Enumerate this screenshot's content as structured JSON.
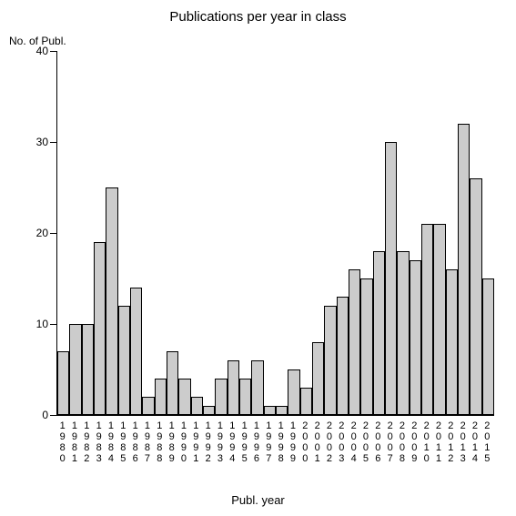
{
  "chart": {
    "type": "bar",
    "title": "Publications per year in class",
    "title_fontsize": 15,
    "ylabel": "No. of Publ.",
    "xlabel": "Publ. year",
    "label_fontsize": 12,
    "background_color": "#ffffff",
    "axis_color": "#000000",
    "bar_fill": "#cccccc",
    "bar_border": "#000000",
    "ylim": [
      0,
      40
    ],
    "yticks": [
      0,
      10,
      20,
      30,
      40
    ],
    "bar_width_ratio": 1.0,
    "categories": [
      "1980",
      "1981",
      "1982",
      "1983",
      "1984",
      "1985",
      "1986",
      "1987",
      "1988",
      "1989",
      "1990",
      "1991",
      "1992",
      "1993",
      "1994",
      "1995",
      "1996",
      "1997",
      "1998",
      "1999",
      "2000",
      "2001",
      "2002",
      "2003",
      "2004",
      "2005",
      "2006",
      "2007",
      "2008",
      "2009",
      "2010",
      "2011",
      "2012",
      "2013",
      "2014",
      "2015"
    ],
    "values": [
      7,
      10,
      10,
      19,
      25,
      12,
      14,
      2,
      4,
      7,
      4,
      2,
      1,
      4,
      6,
      4,
      6,
      1,
      1,
      5,
      3,
      8,
      12,
      13,
      16,
      15,
      18,
      30,
      18,
      17,
      21,
      21,
      16,
      32,
      26,
      15
    ]
  }
}
